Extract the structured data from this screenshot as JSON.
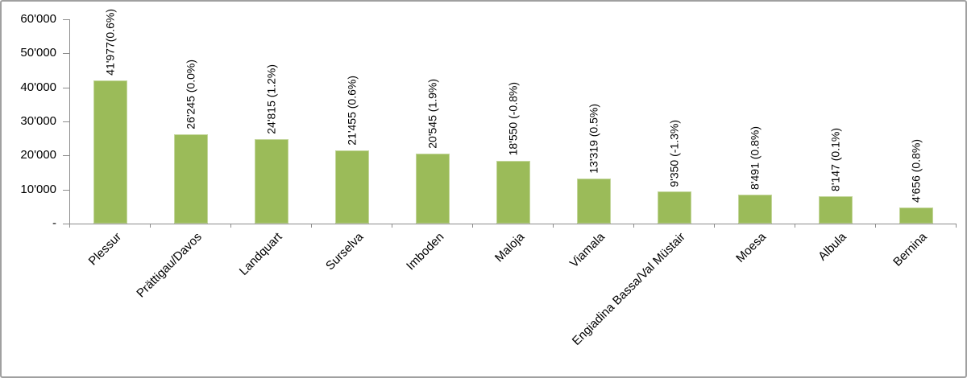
{
  "chart_data": {
    "type": "bar",
    "title": "",
    "xlabel": "",
    "ylabel": "",
    "legend_position": "none",
    "grid": false,
    "ylim": [
      0,
      60000
    ],
    "categories": [
      "Plessur",
      "Prättigau/Davos",
      "Landquart",
      "Surselva",
      "Imboden",
      "Maloja",
      "Viamala",
      "Engiadina Bassa/Val Müstair",
      "Moesa",
      "Albula",
      "Bernina"
    ],
    "values": [
      41977,
      26245,
      24815,
      21455,
      20545,
      18550,
      13319,
      9350,
      8491,
      8147,
      4656
    ],
    "bar_labels": [
      "41'977(0.6%)",
      "26'245 (0.0%)",
      "24'815 (1.2%)",
      "21'455 (0.6%)",
      "20'545 (1.9%)",
      "18'550 (-0.8%)",
      "13'319 (0.5%)",
      "9'350 (-1.3%)",
      "8'491 (0.8%)",
      "8'147 (0.1%)",
      "4'656 (0.8%)"
    ],
    "yticks": [
      {
        "value": 60000,
        "label": "60'000"
      },
      {
        "value": 50000,
        "label": "50'000"
      },
      {
        "value": 40000,
        "label": "40'000"
      },
      {
        "value": 30000,
        "label": "30'000"
      },
      {
        "value": 20000,
        "label": "20'000"
      },
      {
        "value": 10000,
        "label": "10'000"
      },
      {
        "value": 0,
        "label": "-"
      }
    ],
    "bar_color": "#9BBB59",
    "bar_border_color": "#c3d69b",
    "axis_color": "#8c8c8c",
    "text_color": "#000000",
    "background_color": "#ffffff",
    "frame_border_color": "#a0a0a0"
  }
}
